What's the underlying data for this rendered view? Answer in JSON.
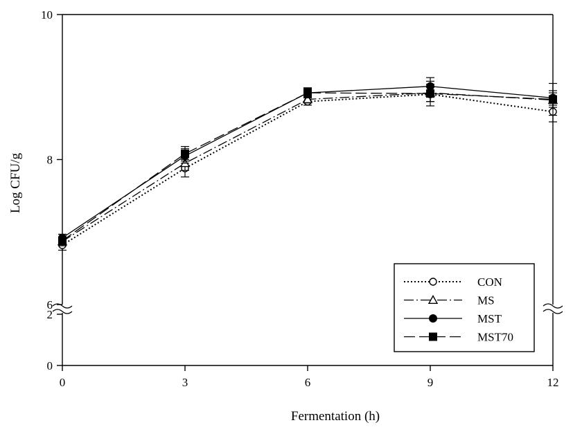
{
  "chart_data": {
    "type": "line",
    "title": "",
    "xlabel": "Fermentation (h)",
    "ylabel": "Log CFU/g",
    "x": [
      0,
      3,
      6,
      9,
      12
    ],
    "xticks": [
      "0",
      "3",
      "6",
      "9",
      "12"
    ],
    "xlim": [
      0,
      12
    ],
    "yticks_lower": [
      "0",
      "2"
    ],
    "yticks_upper": [
      "6",
      "8",
      "10"
    ],
    "ylim_lower": [
      0,
      2
    ],
    "ylim_upper": [
      6,
      10
    ],
    "axis_break": "y between 2 and 6",
    "grid": false,
    "legend_position": "lower-right",
    "series": [
      {
        "name": "CON",
        "values": [
          6.82,
          7.88,
          8.8,
          8.9,
          8.66
        ],
        "errors": [
          0.07,
          0.12,
          0.05,
          0.1,
          0.14
        ],
        "line_style": "dotted",
        "marker": "open-circle"
      },
      {
        "name": "MS",
        "values": [
          6.87,
          7.95,
          8.83,
          8.92,
          8.82
        ],
        "errors": [
          0.06,
          0.1,
          0.05,
          0.12,
          0.1
        ],
        "line_style": "dash-dot",
        "marker": "open-triangle"
      },
      {
        "name": "MST",
        "values": [
          6.92,
          8.05,
          8.92,
          9.01,
          8.85
        ],
        "errors": [
          0.05,
          0.1,
          0.07,
          0.12,
          0.1
        ],
        "line_style": "solid",
        "marker": "filled-circle"
      },
      {
        "name": "MST70",
        "values": [
          6.88,
          8.08,
          8.92,
          8.91,
          8.83
        ],
        "errors": [
          0.05,
          0.1,
          0.06,
          0.17,
          0.22
        ],
        "line_style": "long-dash",
        "marker": "filled-square"
      }
    ]
  }
}
